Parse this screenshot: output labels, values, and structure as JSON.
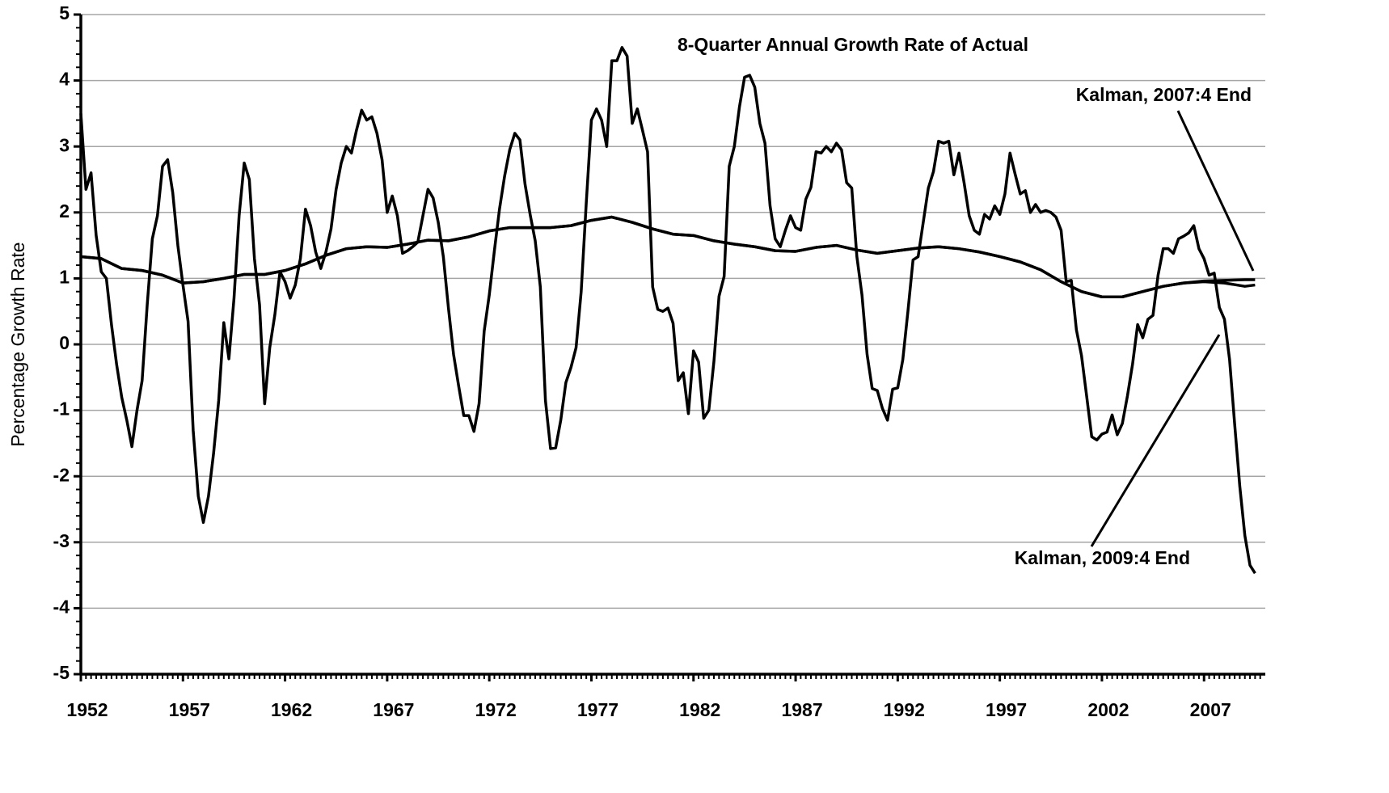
{
  "chart_data": {
    "type": "line",
    "y_label": "Percentage Growth Rate",
    "xlim": [
      1952,
      2010
    ],
    "xticks": [
      1952,
      1957,
      1962,
      1967,
      1972,
      1977,
      1982,
      1987,
      1992,
      1997,
      2002,
      2007
    ],
    "ylim": [
      -5,
      5
    ],
    "yticks": [
      -5,
      -4,
      -3,
      -2,
      -1,
      0,
      1,
      2,
      3,
      4,
      5
    ],
    "grid": true,
    "series": [
      {
        "name": "8-Quarter Annual Growth Rate of Actual",
        "color": "#000000",
        "x": [
          1952,
          1952.25,
          1952.5,
          1952.75,
          1953,
          1953.25,
          1953.5,
          1953.75,
          1954,
          1954.25,
          1954.5,
          1954.75,
          1955,
          1955.25,
          1955.5,
          1955.75,
          1956,
          1956.25,
          1956.5,
          1956.75,
          1957,
          1957.25,
          1957.5,
          1957.75,
          1958,
          1958.25,
          1958.5,
          1958.75,
          1959,
          1959.25,
          1959.5,
          1959.75,
          1960,
          1960.25,
          1960.5,
          1960.75,
          1961,
          1961.25,
          1961.5,
          1961.75,
          1962,
          1962.25,
          1962.5,
          1962.75,
          1963,
          1963.25,
          1963.5,
          1963.75,
          1964,
          1964.25,
          1964.5,
          1964.75,
          1965,
          1965.25,
          1965.5,
          1965.75,
          1966,
          1966.25,
          1966.5,
          1966.75,
          1967,
          1967.25,
          1967.5,
          1967.75,
          1968,
          1968.25,
          1968.5,
          1968.75,
          1969,
          1969.25,
          1969.5,
          1969.75,
          1970,
          1970.25,
          1970.5,
          1970.75,
          1971,
          1971.25,
          1971.5,
          1971.75,
          1972,
          1972.25,
          1972.5,
          1972.75,
          1973,
          1973.25,
          1973.5,
          1973.75,
          1974,
          1974.25,
          1974.5,
          1974.75,
          1975,
          1975.25,
          1975.5,
          1975.75,
          1976,
          1976.25,
          1976.5,
          1976.75,
          1977,
          1977.25,
          1977.5,
          1977.75,
          1978,
          1978.25,
          1978.5,
          1978.75,
          1979,
          1979.25,
          1979.5,
          1979.75,
          1980,
          1980.25,
          1980.5,
          1980.75,
          1981,
          1981.25,
          1981.5,
          1981.75,
          1982,
          1982.25,
          1982.5,
          1982.75,
          1983,
          1983.25,
          1983.5,
          1983.75,
          1984,
          1984.25,
          1984.5,
          1984.75,
          1985,
          1985.25,
          1985.5,
          1985.75,
          1986,
          1986.25,
          1986.5,
          1986.75,
          1987,
          1987.25,
          1987.5,
          1987.75,
          1988,
          1988.25,
          1988.5,
          1988.75,
          1989,
          1989.25,
          1989.5,
          1989.75,
          1990,
          1990.25,
          1990.5,
          1990.75,
          1991,
          1991.25,
          1991.5,
          1991.75,
          1992,
          1992.25,
          1992.5,
          1992.75,
          1993,
          1993.25,
          1993.5,
          1993.75,
          1994,
          1994.25,
          1994.5,
          1994.75,
          1995,
          1995.25,
          1995.5,
          1995.75,
          1996,
          1996.25,
          1996.5,
          1996.75,
          1997,
          1997.25,
          1997.5,
          1997.75,
          1998,
          1998.25,
          1998.5,
          1998.75,
          1999,
          1999.25,
          1999.5,
          1999.75,
          2000,
          2000.25,
          2000.5,
          2000.75,
          2001,
          2001.25,
          2001.5,
          2001.75,
          2002,
          2002.25,
          2002.5,
          2002.75,
          2003,
          2003.25,
          2003.5,
          2003.75,
          2004,
          2004.25,
          2004.5,
          2004.75,
          2005,
          2005.25,
          2005.5,
          2005.75,
          2006,
          2006.25,
          2006.5,
          2006.75,
          2007,
          2007.25,
          2007.5,
          2007.75,
          2008,
          2008.25,
          2008.5,
          2008.75,
          2009,
          2009.25,
          2009.5
        ],
        "values": [
          3.5,
          2.35,
          2.6,
          1.65,
          1.1,
          1.0,
          0.3,
          -0.3,
          -0.8,
          -1.15,
          -1.55,
          -1.0,
          -0.55,
          0.6,
          1.6,
          1.95,
          2.7,
          2.8,
          2.3,
          1.5,
          0.9,
          0.35,
          -1.3,
          -2.3,
          -2.7,
          -2.3,
          -1.65,
          -0.85,
          0.33,
          -0.22,
          0.7,
          1.95,
          2.75,
          2.5,
          1.3,
          0.6,
          -0.9,
          -0.05,
          0.45,
          1.1,
          0.95,
          0.7,
          0.9,
          1.3,
          2.05,
          1.8,
          1.4,
          1.15,
          1.4,
          1.75,
          2.35,
          2.75,
          3.0,
          2.9,
          3.25,
          3.55,
          3.4,
          3.45,
          3.2,
          2.8,
          2.0,
          2.25,
          1.95,
          1.38,
          1.42,
          1.48,
          1.55,
          1.95,
          2.35,
          2.22,
          1.85,
          1.33,
          0.55,
          -0.15,
          -0.63,
          -1.08,
          -1.08,
          -1.32,
          -0.9,
          0.2,
          0.75,
          1.42,
          2.05,
          2.55,
          2.95,
          3.2,
          3.1,
          2.43,
          1.97,
          1.57,
          0.87,
          -0.85,
          -1.58,
          -1.57,
          -1.15,
          -0.58,
          -0.35,
          -0.05,
          0.8,
          2.15,
          3.4,
          3.57,
          3.4,
          3.0,
          4.3,
          4.3,
          4.5,
          4.37,
          3.35,
          3.57,
          3.25,
          2.92,
          0.87,
          0.53,
          0.5,
          0.55,
          0.32,
          -0.55,
          -0.43,
          -1.05,
          -0.1,
          -0.27,
          -1.12,
          -1.0,
          -0.26,
          0.73,
          1.03,
          2.7,
          3.0,
          3.6,
          4.05,
          4.08,
          3.9,
          3.35,
          3.05,
          2.1,
          1.6,
          1.48,
          1.73,
          1.95,
          1.77,
          1.73,
          2.2,
          2.38,
          2.92,
          2.9,
          3.0,
          2.92,
          3.05,
          2.95,
          2.45,
          2.37,
          1.33,
          0.75,
          -0.15,
          -0.67,
          -0.7,
          -0.97,
          -1.15,
          -0.68,
          -0.66,
          -0.23,
          0.5,
          1.28,
          1.33,
          1.85,
          2.37,
          2.62,
          3.08,
          3.05,
          3.08,
          2.57,
          2.9,
          2.45,
          1.95,
          1.73,
          1.67,
          1.97,
          1.9,
          2.1,
          1.97,
          2.28,
          2.9,
          2.58,
          2.28,
          2.33,
          2.0,
          2.12,
          2.0,
          2.03,
          2.0,
          1.93,
          1.73,
          0.95,
          0.97,
          0.22,
          -0.17,
          -0.78,
          -1.4,
          -1.45,
          -1.36,
          -1.33,
          -1.07,
          -1.37,
          -1.2,
          -0.78,
          -0.3,
          0.3,
          0.1,
          0.38,
          0.44,
          1.05,
          1.45,
          1.45,
          1.38,
          1.6,
          1.64,
          1.69,
          1.8,
          1.45,
          1.3,
          1.05,
          1.08,
          0.56,
          0.38,
          -0.23,
          -1.21,
          -2.15,
          -2.9,
          -3.35,
          -3.47
        ]
      },
      {
        "name": "Kalman, 2007:4 End",
        "color": "#000000",
        "x": [
          1952,
          1953,
          1954,
          1955,
          1956,
          1957,
          1958,
          1959,
          1960,
          1961,
          1962,
          1963,
          1964,
          1965,
          1966,
          1967,
          1968,
          1969,
          1970,
          1971,
          1972,
          1973,
          1974,
          1975,
          1976,
          1977,
          1978,
          1979,
          1980,
          1981,
          1982,
          1983,
          1984,
          1985,
          1986,
          1987,
          1988,
          1989,
          1990,
          1991,
          1992,
          1993,
          1994,
          1995,
          1996,
          1997,
          1998,
          1999,
          2000,
          2001,
          2002,
          2003,
          2004,
          2005,
          2006,
          2007,
          2008,
          2009,
          2009.5
        ],
        "values": [
          1.33,
          1.3,
          1.15,
          1.12,
          1.05,
          0.93,
          0.95,
          1.0,
          1.06,
          1.06,
          1.12,
          1.22,
          1.35,
          1.45,
          1.48,
          1.47,
          1.52,
          1.58,
          1.57,
          1.63,
          1.72,
          1.77,
          1.77,
          1.77,
          1.8,
          1.88,
          1.93,
          1.85,
          1.75,
          1.67,
          1.65,
          1.57,
          1.52,
          1.48,
          1.42,
          1.41,
          1.47,
          1.5,
          1.43,
          1.38,
          1.42,
          1.46,
          1.48,
          1.45,
          1.4,
          1.33,
          1.25,
          1.13,
          0.95,
          0.8,
          0.72,
          0.72,
          0.8,
          0.88,
          0.93,
          0.96,
          0.97,
          0.98,
          0.98
        ]
      },
      {
        "name": "Kalman, 2009:4 End",
        "color": "#000000",
        "x": [
          1952,
          1953,
          1954,
          1955,
          1956,
          1957,
          1958,
          1959,
          1960,
          1961,
          1962,
          1963,
          1964,
          1965,
          1966,
          1967,
          1968,
          1969,
          1970,
          1971,
          1972,
          1973,
          1974,
          1975,
          1976,
          1977,
          1978,
          1979,
          1980,
          1981,
          1982,
          1983,
          1984,
          1985,
          1986,
          1987,
          1988,
          1989,
          1990,
          1991,
          1992,
          1993,
          1994,
          1995,
          1996,
          1997,
          1998,
          1999,
          2000,
          2001,
          2002,
          2003,
          2004,
          2005,
          2006,
          2007,
          2008,
          2009,
          2009.5
        ],
        "values": [
          1.33,
          1.3,
          1.15,
          1.12,
          1.05,
          0.93,
          0.95,
          1.0,
          1.06,
          1.06,
          1.12,
          1.22,
          1.35,
          1.45,
          1.48,
          1.47,
          1.52,
          1.58,
          1.57,
          1.63,
          1.72,
          1.77,
          1.77,
          1.77,
          1.8,
          1.88,
          1.93,
          1.85,
          1.75,
          1.67,
          1.65,
          1.57,
          1.52,
          1.48,
          1.42,
          1.41,
          1.47,
          1.5,
          1.43,
          1.38,
          1.42,
          1.46,
          1.48,
          1.45,
          1.4,
          1.33,
          1.25,
          1.13,
          0.95,
          0.8,
          0.72,
          0.72,
          0.8,
          0.88,
          0.93,
          0.95,
          0.93,
          0.88,
          0.9
        ]
      }
    ]
  }
}
